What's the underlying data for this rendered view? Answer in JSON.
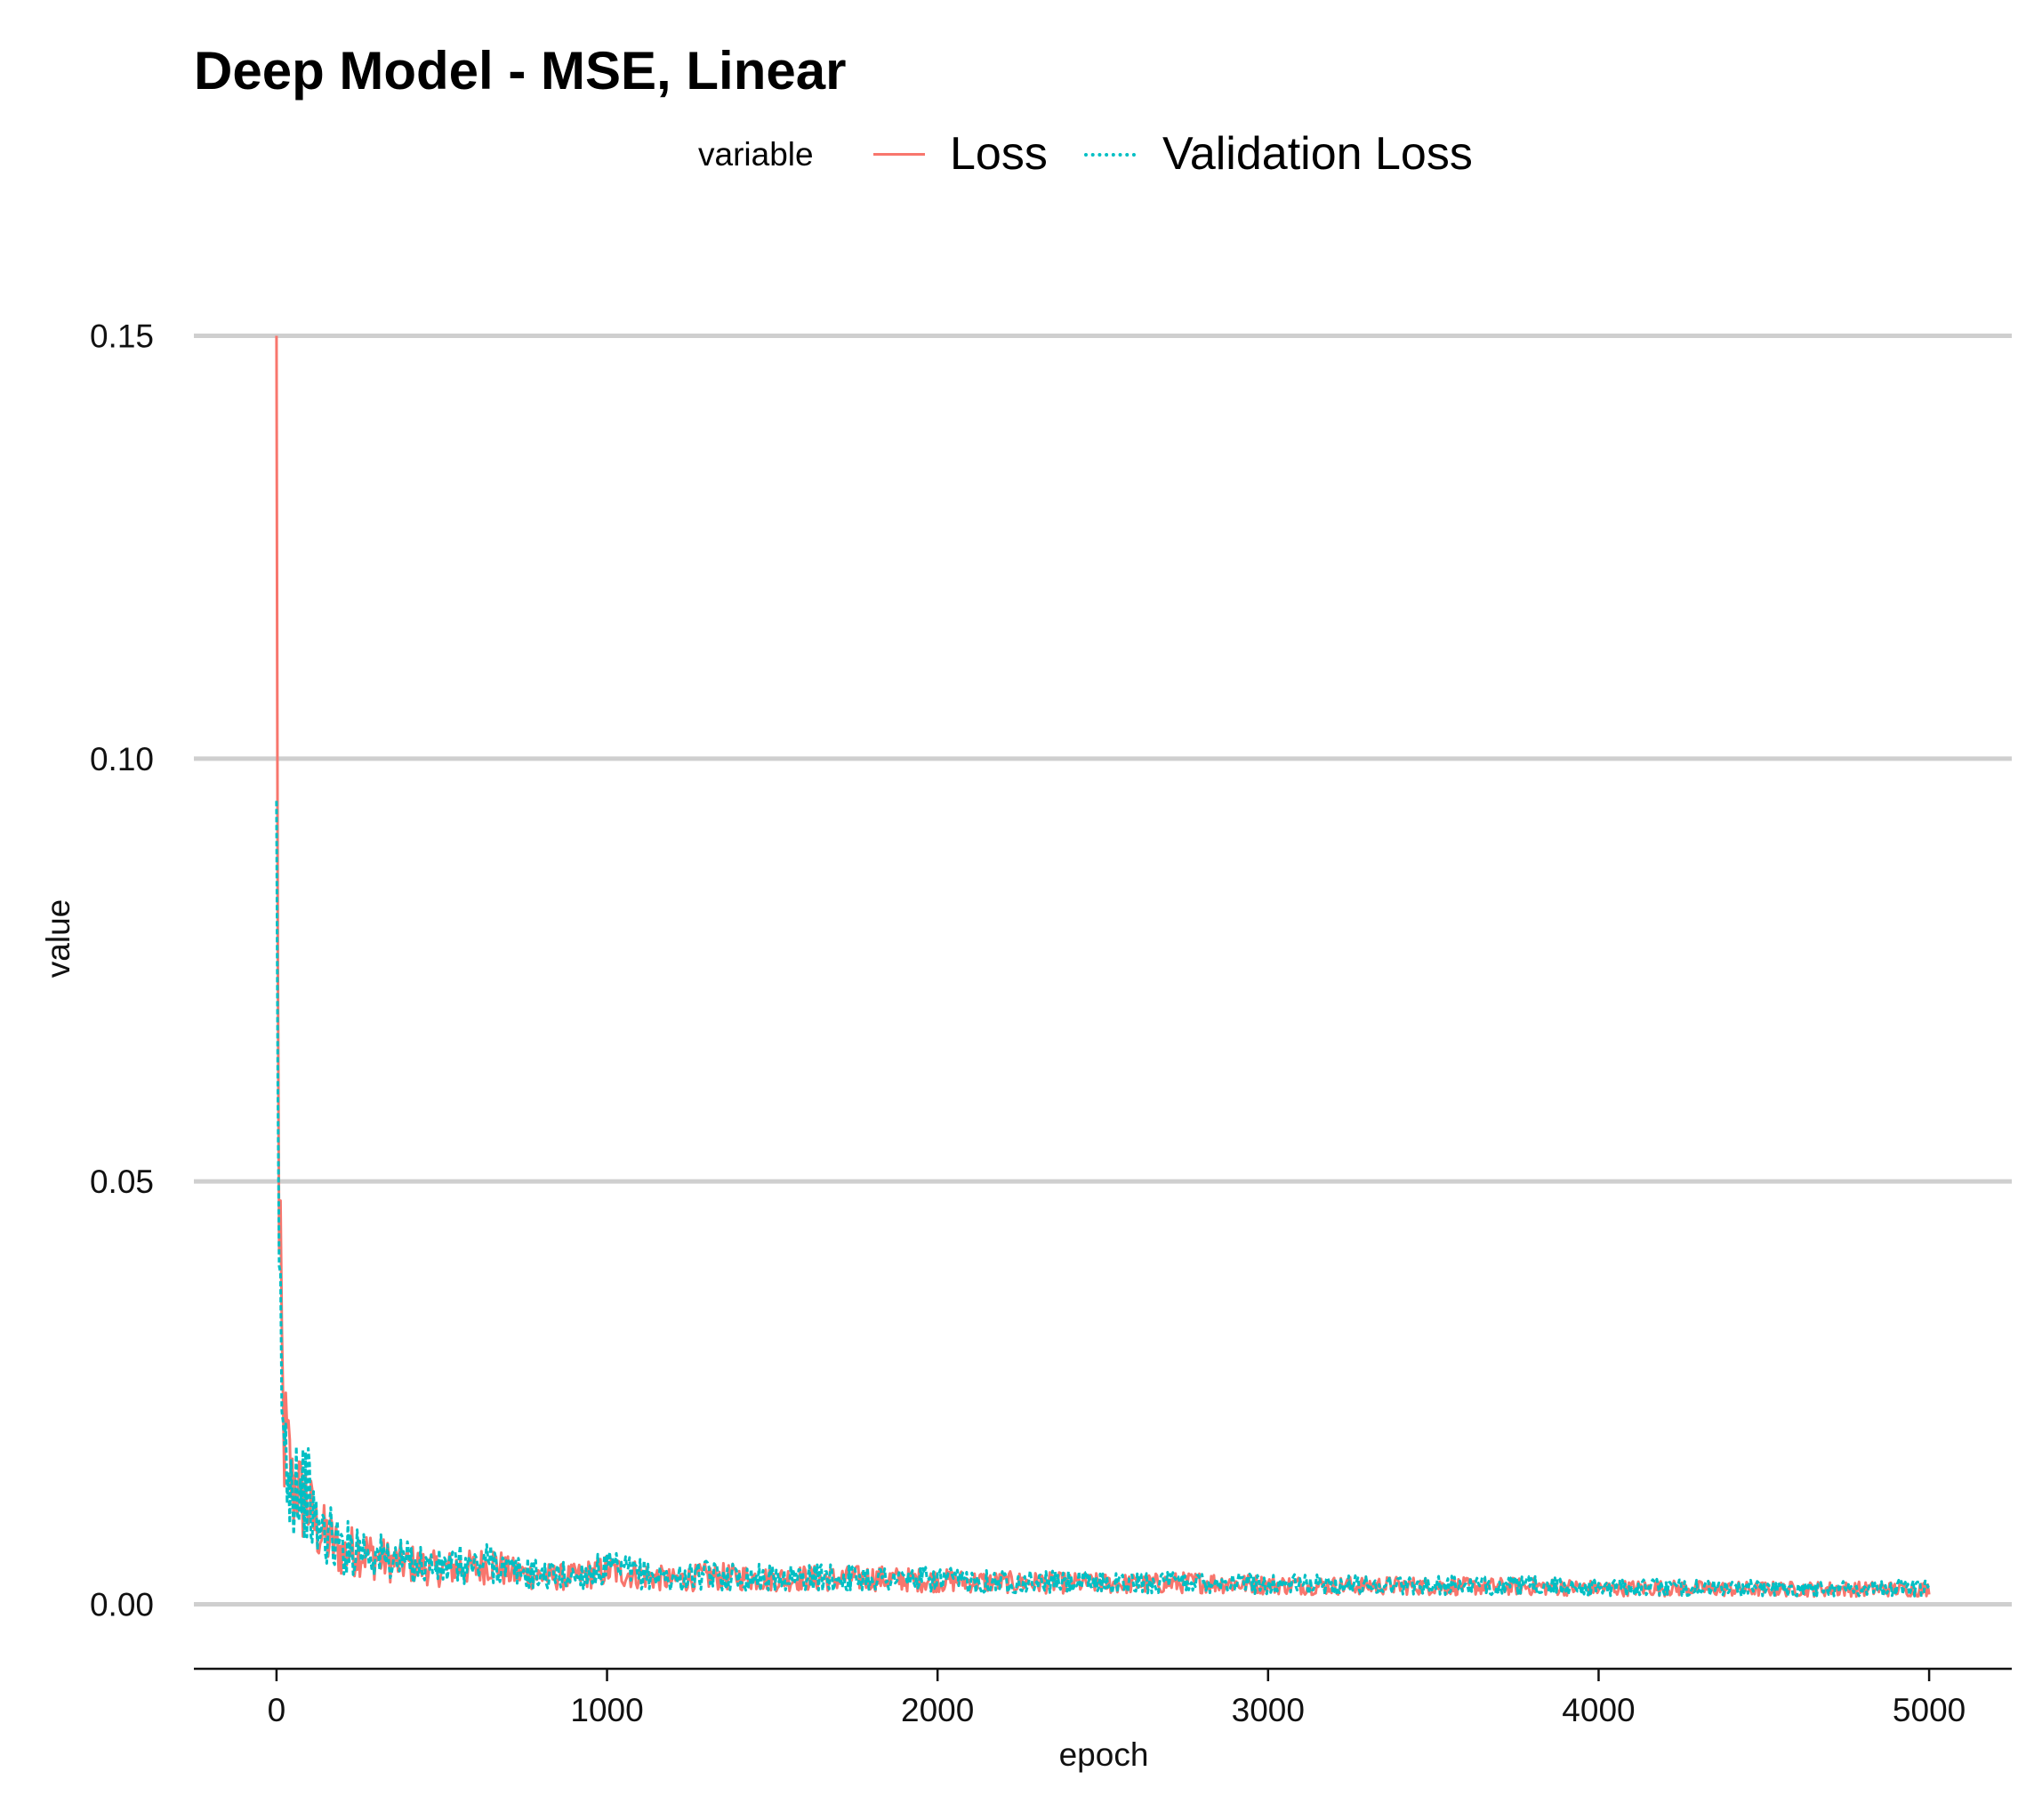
{
  "chart_data": {
    "type": "line",
    "title": "Deep Model - MSE, Linear",
    "xlabel": "epoch",
    "ylabel": "value",
    "xlim": [
      -250,
      5250
    ],
    "ylim": [
      -0.007,
      0.155
    ],
    "x_ticks": [
      0,
      1000,
      2000,
      3000,
      4000,
      5000
    ],
    "x_tick_labels": [
      "0",
      "1000",
      "2000",
      "3000",
      "4000",
      "5000"
    ],
    "y_ticks": [
      0.0,
      0.05,
      0.1,
      0.15
    ],
    "y_tick_labels": [
      "0.00",
      "0.05",
      "0.10",
      "0.15"
    ],
    "grid": "horizontal major only",
    "legend": {
      "title": "variable",
      "position": "top"
    },
    "series": [
      {
        "name": "Loss",
        "color": "#F8766D",
        "line_style": "solid",
        "x": [
          0,
          3,
          6,
          10,
          15,
          20,
          30,
          40,
          50,
          60,
          75,
          90,
          100,
          120,
          150,
          200,
          250,
          300,
          350,
          400,
          450,
          500,
          550,
          600,
          650,
          700,
          800,
          900,
          1000,
          1100,
          1200,
          1300,
          1400,
          1500,
          1600,
          1700,
          1800,
          1900,
          2000,
          2200,
          2400,
          2600,
          2800,
          3000,
          3200,
          3400,
          3600,
          3800,
          4000,
          4200,
          4400,
          4600,
          4800,
          5000
        ],
        "values": [
          0.15,
          0.09,
          0.048,
          0.035,
          0.03,
          0.021,
          0.018,
          0.016,
          0.013,
          0.015,
          0.012,
          0.013,
          0.011,
          0.009,
          0.008,
          0.006,
          0.0065,
          0.0055,
          0.005,
          0.0048,
          0.0045,
          0.004,
          0.0045,
          0.0042,
          0.005,
          0.0038,
          0.0033,
          0.0032,
          0.004,
          0.0035,
          0.0028,
          0.0033,
          0.0032,
          0.003,
          0.0031,
          0.003,
          0.0031,
          0.0029,
          0.0028,
          0.0026,
          0.0025,
          0.0024,
          0.0026,
          0.0023,
          0.0022,
          0.0022,
          0.0021,
          0.0021,
          0.0019,
          0.0019,
          0.0018,
          0.0018,
          0.0018,
          0.0018
        ]
      },
      {
        "name": "Validation Loss",
        "color": "#00BFC4",
        "line_style": "dotted",
        "x": [
          0,
          3,
          6,
          10,
          15,
          20,
          30,
          40,
          50,
          60,
          75,
          90,
          100,
          120,
          150,
          200,
          250,
          300,
          350,
          400,
          450,
          500,
          550,
          600,
          650,
          700,
          800,
          900,
          1000,
          1100,
          1200,
          1300,
          1400,
          1500,
          1600,
          1700,
          1800,
          1900,
          2000,
          2200,
          2400,
          2600,
          2800,
          3000,
          3200,
          3400,
          3600,
          3800,
          4000,
          4200,
          4400,
          4600,
          4800,
          5000
        ],
        "values": [
          0.095,
          0.07,
          0.045,
          0.035,
          0.028,
          0.02,
          0.017,
          0.016,
          0.014,
          0.016,
          0.013,
          0.014,
          0.012,
          0.009,
          0.0085,
          0.0065,
          0.007,
          0.0058,
          0.0052,
          0.005,
          0.0047,
          0.0042,
          0.0047,
          0.0044,
          0.0052,
          0.004,
          0.0035,
          0.0033,
          0.0042,
          0.0036,
          0.003,
          0.0034,
          0.0033,
          0.0031,
          0.0032,
          0.0031,
          0.0032,
          0.003,
          0.0029,
          0.0027,
          0.0026,
          0.0025,
          0.0027,
          0.0024,
          0.0023,
          0.0023,
          0.0022,
          0.0022,
          0.002,
          0.002,
          0.0019,
          0.0019,
          0.0019,
          0.0019
        ]
      }
    ]
  }
}
